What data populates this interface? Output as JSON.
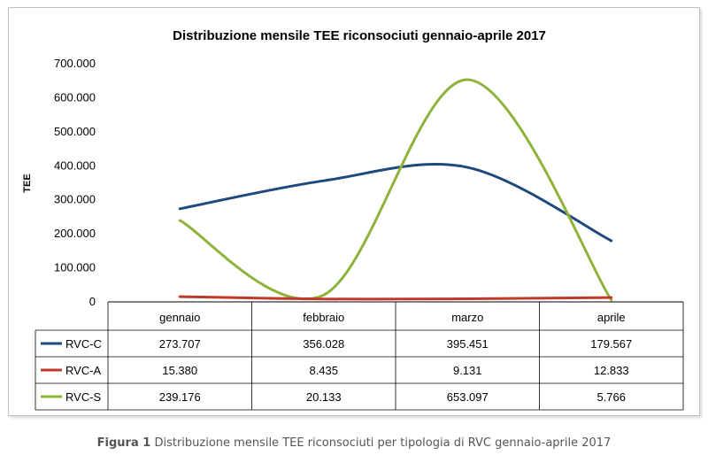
{
  "chart_data": {
    "type": "line",
    "title": "Distribuzione mensile TEE riconsociuti gennaio-aprile 2017",
    "ylabel": "TEE",
    "xlabel": "",
    "categories": [
      "gennaio",
      "febbraio",
      "marzo",
      "aprile"
    ],
    "ylim": [
      0,
      700000
    ],
    "yticks": [
      0,
      100000,
      200000,
      300000,
      400000,
      500000,
      600000,
      700000
    ],
    "ytick_labels": [
      "0",
      "100.000",
      "200.000",
      "300.000",
      "400.000",
      "500.000",
      "600.000",
      "700.000"
    ],
    "grid": false,
    "legend": "data-table",
    "series": [
      {
        "name": "RVC-C",
        "color": "#1f497d",
        "values": [
          273707,
          356028,
          395451,
          179567
        ],
        "labels": [
          "273.707",
          "356.028",
          "395.451",
          "179.567"
        ]
      },
      {
        "name": "RVC-A",
        "color": "#c0392b",
        "values": [
          15380,
          8435,
          9131,
          12833
        ],
        "labels": [
          "15.380",
          "8.435",
          "9.131",
          "12.833"
        ]
      },
      {
        "name": "RVC-S",
        "color": "#8db33b",
        "values": [
          239176,
          20133,
          653097,
          5766
        ],
        "labels": [
          "239.176",
          "20.133",
          "653.097",
          "5.766"
        ]
      }
    ]
  },
  "caption": {
    "label": "Figura 1",
    "text": "Distribuzione mensile TEE riconsociuti per tipologia di RVC gennaio-aprile 2017"
  }
}
